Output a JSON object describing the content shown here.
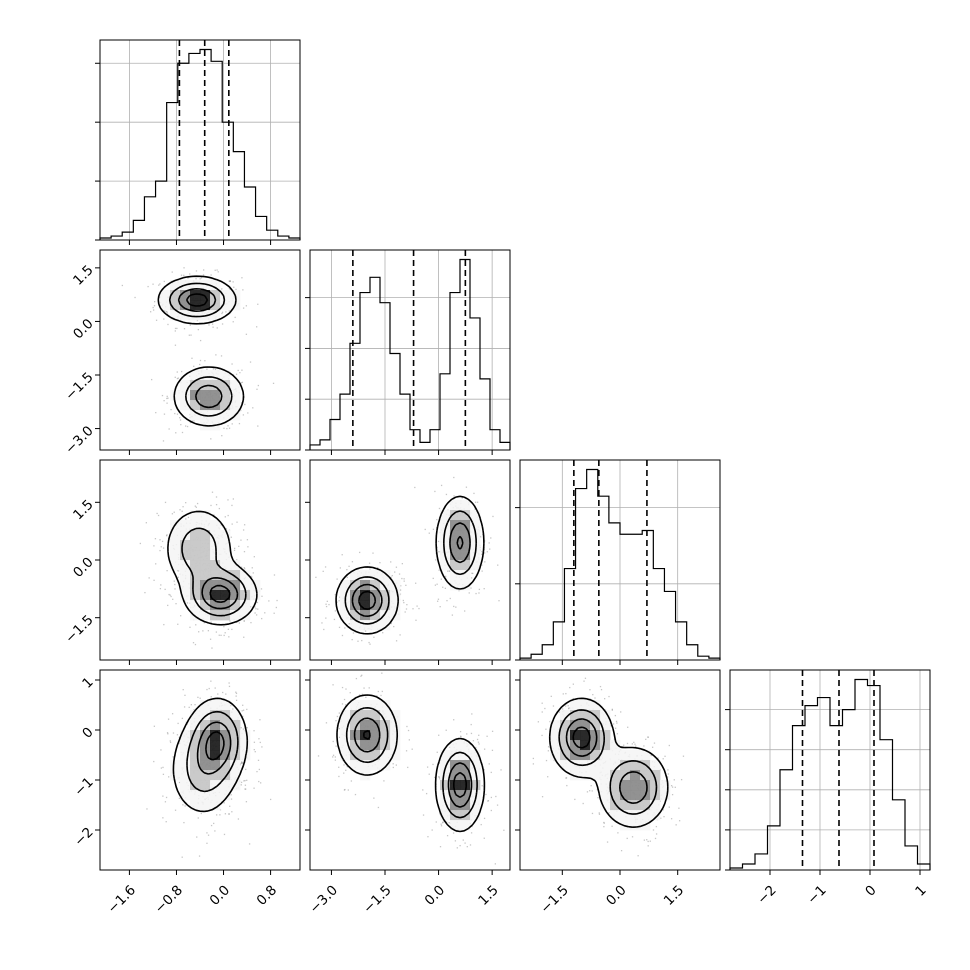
{
  "chart_data": {
    "type": "corner",
    "parameters": [
      "",
      "",
      "",
      ""
    ],
    "ranges": [
      [
        -2.1,
        1.3
      ],
      [
        -3.6,
        2.0
      ],
      [
        -2.6,
        2.6
      ],
      [
        -2.8,
        1.2
      ]
    ],
    "quantile_lines": [
      [
        -0.75,
        -0.32,
        0.09
      ],
      [
        -2.4,
        -0.7,
        0.75
      ],
      [
        -1.2,
        -0.55,
        0.7
      ],
      [
        -1.35,
        -0.62,
        0.08
      ]
    ],
    "tick_labels": {
      "x": [
        [
          {
            "v": -1.6,
            "label": "−1.6"
          },
          {
            "v": -0.8,
            "label": "−0.8"
          },
          {
            "v": 0.0,
            "label": "0.0"
          },
          {
            "v": 0.8,
            "label": "0.8"
          }
        ],
        [
          {
            "v": -3.0,
            "label": "−3.0"
          },
          {
            "v": -1.5,
            "label": "−1.5"
          },
          {
            "v": 0.0,
            "label": "0.0"
          },
          {
            "v": 1.5,
            "label": "1.5"
          }
        ],
        [
          {
            "v": -1.5,
            "label": "−1.5"
          },
          {
            "v": 0.0,
            "label": "0.0"
          },
          {
            "v": 1.5,
            "label": "1.5"
          }
        ],
        [
          {
            "v": -2,
            "label": "−2"
          },
          {
            "v": -1,
            "label": "−1"
          },
          {
            "v": 0,
            "label": "0"
          },
          {
            "v": 1,
            "label": "1"
          }
        ]
      ],
      "y": [
        [],
        [
          {
            "v": 1.5,
            "label": "1.5"
          },
          {
            "v": 0.0,
            "label": "0.0"
          },
          {
            "v": -1.5,
            "label": "−1.5"
          },
          {
            "v": -3.0,
            "label": "−3.0"
          }
        ],
        [
          {
            "v": 1.5,
            "label": "1.5"
          },
          {
            "v": 0.0,
            "label": "0.0"
          },
          {
            "v": -1.5,
            "label": "−1.5"
          }
        ],
        [
          {
            "v": 1,
            "label": "1"
          },
          {
            "v": 0,
            "label": "0"
          },
          {
            "v": -1,
            "label": "−1"
          },
          {
            "v": -2,
            "label": "−2"
          }
        ]
      ]
    },
    "histograms": [
      {
        "counts": [
          1,
          2,
          4,
          10,
          22,
          30,
          70,
          90,
          95,
          97,
          91,
          60,
          45,
          27,
          12,
          5,
          2,
          1
        ],
        "y_ticks": [
          0,
          30,
          60,
          90
        ]
      },
      {
        "counts": [
          2,
          4,
          12,
          22,
          42,
          62,
          68,
          58,
          38,
          22,
          8,
          3,
          8,
          30,
          62,
          75,
          52,
          28,
          8,
          3
        ],
        "y_ticks": [
          0,
          20,
          40,
          60
        ]
      },
      {
        "counts": [
          1,
          3,
          8,
          20,
          48,
          90,
          100,
          86,
          72,
          66,
          66,
          68,
          48,
          36,
          20,
          8,
          2,
          1
        ],
        "y_ticks": [
          0,
          40,
          80
        ]
      },
      {
        "counts": [
          1,
          3,
          8,
          22,
          50,
          72,
          82,
          86,
          72,
          80,
          95,
          92,
          65,
          35,
          12,
          3
        ],
        "y_ticks": [
          0,
          20,
          40,
          60,
          80
        ]
      }
    ],
    "joint_blobs": {
      "1-0": [
        {
          "cx": -0.45,
          "cy": 0.6,
          "sx": 0.32,
          "sy": 0.32,
          "w": 0.5
        },
        {
          "cx": -0.25,
          "cy": -2.1,
          "sx": 0.3,
          "sy": 0.42,
          "w": 0.5
        }
      ],
      "2-0": [
        {
          "cx": -0.42,
          "cy": 0.3,
          "sx": 0.3,
          "sy": 0.55,
          "w": 0.45
        },
        {
          "cx": -0.05,
          "cy": -0.9,
          "sx": 0.3,
          "sy": 0.38,
          "w": 0.55
        }
      ],
      "2-1": [
        {
          "cx": -2.0,
          "cy": -1.05,
          "sx": 0.42,
          "sy": 0.42,
          "w": 0.5
        },
        {
          "cx": 0.6,
          "cy": 0.45,
          "sx": 0.33,
          "sy": 0.6,
          "w": 0.5
        }
      ],
      "3-0": [
        {
          "cx": -0.35,
          "cy": -0.8,
          "sx": 0.3,
          "sy": 0.5,
          "w": 0.45
        },
        {
          "cx": -0.1,
          "cy": -0.2,
          "sx": 0.25,
          "sy": 0.42,
          "w": 0.55
        }
      ],
      "3-1": [
        {
          "cx": -2.0,
          "cy": -0.1,
          "sx": 0.42,
          "sy": 0.4,
          "w": 0.5
        },
        {
          "cx": 0.6,
          "cy": -1.1,
          "sx": 0.33,
          "sy": 0.45,
          "w": 0.5
        }
      ],
      "3-2": [
        {
          "cx": -1.0,
          "cy": -0.15,
          "sx": 0.4,
          "sy": 0.38,
          "w": 0.5
        },
        {
          "cx": 0.35,
          "cy": -1.15,
          "sx": 0.45,
          "sy": 0.4,
          "w": 0.5
        }
      ]
    }
  }
}
